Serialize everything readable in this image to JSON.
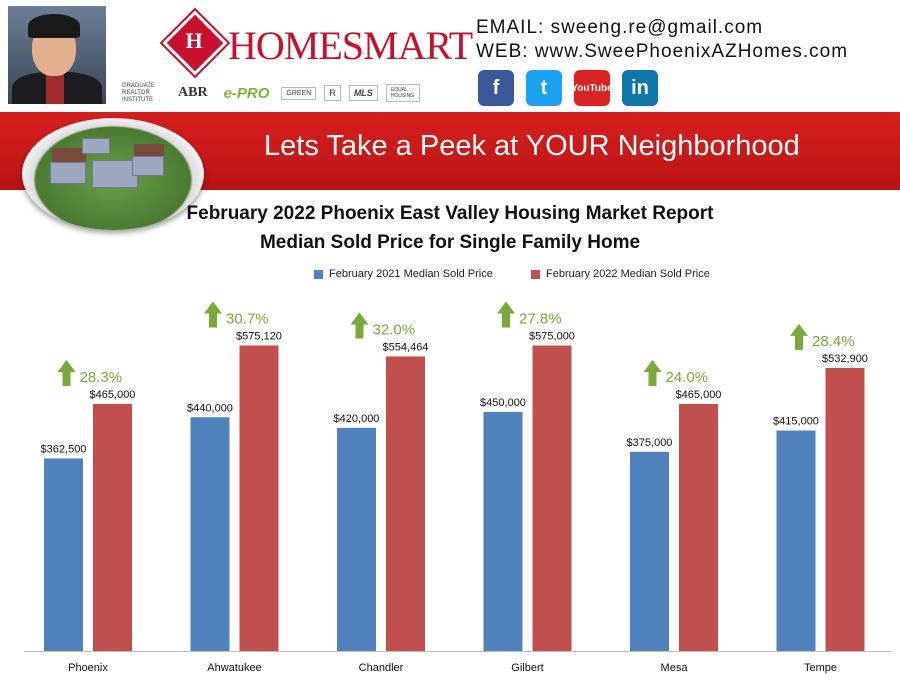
{
  "header": {
    "email": "EMAIL: sweeng.re@gmail.com",
    "web": "WEB: www.SweePhoenixAZHomes.com",
    "brand": "HOMESMART",
    "banner": "Lets Take a Peek at YOUR Neighborhood",
    "badges": [
      "GRADUATE REALTOR INSTITUTE",
      "ABR",
      "e-PRO",
      "GREEN",
      "R",
      "MLS",
      "EQUAL HOUSING"
    ],
    "social": [
      {
        "name": "facebook-icon",
        "glyph": "f"
      },
      {
        "name": "twitter-icon",
        "glyph": "t"
      },
      {
        "name": "youtube-icon",
        "glyph": "YouTube"
      },
      {
        "name": "linkedin-icon",
        "glyph": "in"
      }
    ]
  },
  "chart_data": {
    "type": "bar",
    "title": "February 2022 Phoenix East Valley Housing Market Report",
    "subtitle": "Median Sold Price for Single Family Home",
    "categories": [
      "Phoenix",
      "Ahwatukee",
      "Chandler",
      "Gilbert",
      "Mesa",
      "Tempe"
    ],
    "series": [
      {
        "name": "February 2021 Median Sold Price",
        "color": "#4f81bd",
        "values": [
          362500,
          440000,
          420000,
          450000,
          375000,
          415000
        ],
        "labels": [
          "$362,500",
          "$440,000",
          "$420,000",
          "$450,000",
          "$375,000",
          "$415,000"
        ]
      },
      {
        "name": "February 2022 Median Sold Price",
        "color": "#c0504d",
        "values": [
          465000,
          575120,
          554464,
          575000,
          465000,
          532900
        ],
        "labels": [
          "$465,000",
          "$575,120",
          "$554,464",
          "$575,000",
          "$465,000",
          "$532,900"
        ]
      }
    ],
    "changes": [
      "28.3%",
      "30.7%",
      "32.0%",
      "27.8%",
      "24.0%",
      "28.4%"
    ],
    "change_color": "#7aa83a",
    "ylim": [
      0,
      640000
    ],
    "legend_position": "top",
    "grid": false
  }
}
